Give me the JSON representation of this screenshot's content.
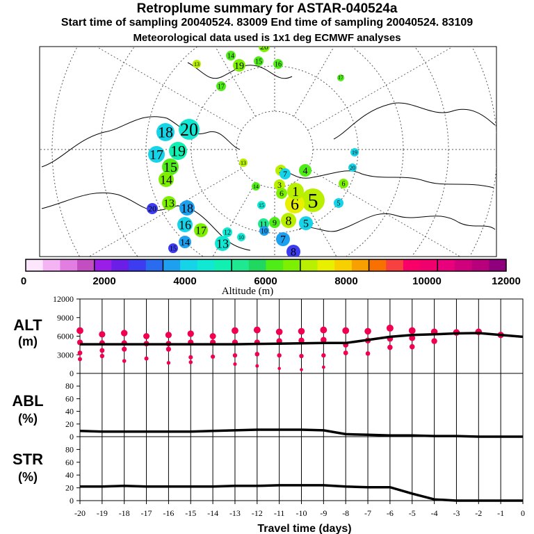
{
  "header": {
    "title": "Retroplume summary for ASTAR-040524a",
    "subtitle": "Start time of sampling 20040524. 83009     End time of sampling 20040524. 83109",
    "met": "Meteorological data used is 1x1 deg ECMWF analyses"
  },
  "colorbar": {
    "label": "Altitude  (m)",
    "ticks": [
      "0",
      "2000",
      "4000",
      "6000",
      "8000",
      "10000",
      "12000"
    ],
    "colors": [
      "#fce6fc",
      "#f4b4f4",
      "#e27ee2",
      "#c24ec2",
      "#9b1ee8",
      "#6a1ee8",
      "#3c3cf0",
      "#2a6cf0",
      "#1ea0f0",
      "#16d4e8",
      "#10e8d4",
      "#10f0b0",
      "#1ee890",
      "#20d860",
      "#50ec18",
      "#7cf000",
      "#b8f000",
      "#e8f000",
      "#f8d000",
      "#f8a000",
      "#f87000",
      "#f84040",
      "#f80068",
      "#f0006c",
      "#e8007c",
      "#d0007c",
      "#b8007c",
      "#90007c"
    ]
  },
  "map": {
    "labels": [
      {
        "t": "18",
        "c": "#16d4e8",
        "s": 22
      },
      {
        "t": "20",
        "c": "#10e8d4",
        "s": 26
      },
      {
        "t": "17",
        "c": "#16d4e8",
        "s": 20
      },
      {
        "t": "19",
        "c": "#10f0b0",
        "s": 22
      },
      {
        "t": "15",
        "c": "#50ec18",
        "s": 20
      },
      {
        "t": "14",
        "c": "#7cf000",
        "s": 18
      },
      {
        "t": "13",
        "c": "#7cf000",
        "s": 16
      },
      {
        "t": "18",
        "c": "#1ea0f0",
        "s": 18
      },
      {
        "t": "16",
        "c": "#16d4e8",
        "s": 18
      },
      {
        "t": "17",
        "c": "#7cf000",
        "s": 16
      },
      {
        "t": "14",
        "c": "#1ea0f0",
        "s": 14
      },
      {
        "t": "13",
        "c": "#10e8d4",
        "s": 18
      },
      {
        "t": "20",
        "c": "#3c3cf0",
        "s": 12
      },
      {
        "t": "15",
        "c": "#3c3cf0",
        "s": 10
      },
      {
        "t": "12",
        "c": "#10e8d4",
        "s": 10
      },
      {
        "t": "10",
        "c": "#10e8d4",
        "s": 8
      },
      {
        "t": "14",
        "c": "#50ec18",
        "s": 8
      },
      {
        "t": "13",
        "c": "#b8f000",
        "s": 8
      },
      {
        "t": "15",
        "c": "#10e8d4",
        "s": 8
      },
      {
        "t": "11",
        "c": "#1ee890",
        "s": 12
      },
      {
        "t": "9",
        "c": "#50ec18",
        "s": 12
      },
      {
        "t": "10",
        "c": "#1ea0f0",
        "s": 10
      },
      {
        "t": "8",
        "c": "#b8f000",
        "s": 18
      },
      {
        "t": "5",
        "c": "#16d4e8",
        "s": 16
      },
      {
        "t": "7",
        "c": "#1ea0f0",
        "s": 16
      },
      {
        "t": "8",
        "c": "#3c3cf0",
        "s": 16
      },
      {
        "t": "5",
        "c": "#b8f000",
        "s": 30
      },
      {
        "t": "6",
        "c": "#e8f000",
        "s": 24
      },
      {
        "t": "1",
        "c": "#b8f000",
        "s": 20
      },
      {
        "t": "4",
        "c": "#50ec18",
        "s": 14
      },
      {
        "t": "3",
        "c": "#b8f000",
        "s": 12
      },
      {
        "t": "2",
        "c": "#b8f000",
        "s": 12
      },
      {
        "t": "20",
        "c": "#16d4e8",
        "s": 8
      },
      {
        "t": "19",
        "c": "#16d4e8",
        "s": 8
      },
      {
        "t": "5",
        "c": "#16d4e8",
        "s": 10
      },
      {
        "t": "6",
        "c": "#7cf000",
        "s": 10
      },
      {
        "t": "20",
        "c": "#7cf000",
        "s": 12
      },
      {
        "t": "14",
        "c": "#50ec18",
        "s": 10
      },
      {
        "t": "19",
        "c": "#7cf000",
        "s": 14
      },
      {
        "t": "13",
        "c": "#b8f000",
        "s": 8
      },
      {
        "t": "15",
        "c": "#50ec18",
        "s": 10
      },
      {
        "t": "16",
        "c": "#50ec18",
        "s": 10
      },
      {
        "t": "17",
        "c": "#50ec18",
        "s": 10
      },
      {
        "t": "17",
        "c": "#50ec18",
        "s": 6
      },
      {
        "t": "7",
        "c": "#16d4e8",
        "s": 12
      },
      {
        "t": "6",
        "c": "#7cf000",
        "s": 12
      }
    ]
  },
  "chart_data": [
    {
      "type": "scatter",
      "name": "ALT",
      "ylabel": [
        "ALT",
        "(m)"
      ],
      "ylim": [
        0,
        12000
      ],
      "yticks": [
        "0",
        "3000",
        "6000",
        "9000",
        "12000"
      ],
      "xlim": [
        -20,
        0
      ],
      "line_x": [
        -20,
        -19,
        -18,
        -17,
        -16,
        -15,
        -14,
        -13,
        -12,
        -11,
        -10,
        -9,
        -8,
        -7,
        -6,
        -5,
        -4,
        -3,
        -2,
        -1,
        0
      ],
      "line_y": [
        4700,
        4700,
        4700,
        4700,
        4700,
        4700,
        4700,
        4700,
        4750,
        4800,
        4850,
        4900,
        4900,
        5400,
        5900,
        6200,
        6300,
        6450,
        6500,
        6200,
        5900
      ],
      "points": [
        {
          "x": -20,
          "y": 6900
        },
        {
          "x": -20,
          "y": 5000
        },
        {
          "x": -20,
          "y": 3300
        },
        {
          "x": -20,
          "y": 2300
        },
        {
          "x": -19,
          "y": 6300
        },
        {
          "x": -19,
          "y": 4900
        },
        {
          "x": -19,
          "y": 3700
        },
        {
          "x": -19,
          "y": 2800
        },
        {
          "x": -18,
          "y": 6500
        },
        {
          "x": -18,
          "y": 4900
        },
        {
          "x": -18,
          "y": 3900
        },
        {
          "x": -18,
          "y": 2000
        },
        {
          "x": -17,
          "y": 6000
        },
        {
          "x": -17,
          "y": 4800
        },
        {
          "x": -17,
          "y": 2400
        },
        {
          "x": -16,
          "y": 6200
        },
        {
          "x": -16,
          "y": 4800
        },
        {
          "x": -16,
          "y": 3900
        },
        {
          "x": -16,
          "y": 1700
        },
        {
          "x": -15,
          "y": 6400
        },
        {
          "x": -15,
          "y": 5000
        },
        {
          "x": -15,
          "y": 2600
        },
        {
          "x": -15,
          "y": 1800
        },
        {
          "x": -14,
          "y": 6000
        },
        {
          "x": -14,
          "y": 5000
        },
        {
          "x": -14,
          "y": 2700
        },
        {
          "x": -13,
          "y": 6900
        },
        {
          "x": -13,
          "y": 5000
        },
        {
          "x": -13,
          "y": 2900
        },
        {
          "x": -13,
          "y": 1500
        },
        {
          "x": -12,
          "y": 7000
        },
        {
          "x": -12,
          "y": 5000
        },
        {
          "x": -12,
          "y": 3100
        },
        {
          "x": -12,
          "y": 1200
        },
        {
          "x": -11,
          "y": 6700
        },
        {
          "x": -11,
          "y": 5200
        },
        {
          "x": -11,
          "y": 2900
        },
        {
          "x": -11,
          "y": 800
        },
        {
          "x": -10,
          "y": 6800
        },
        {
          "x": -10,
          "y": 5300
        },
        {
          "x": -10,
          "y": 2800
        },
        {
          "x": -10,
          "y": 600
        },
        {
          "x": -9,
          "y": 7000
        },
        {
          "x": -9,
          "y": 5400
        },
        {
          "x": -9,
          "y": 2900
        },
        {
          "x": -9,
          "y": 1000
        },
        {
          "x": -8,
          "y": 6900
        },
        {
          "x": -8,
          "y": 4600
        },
        {
          "x": -8,
          "y": 3300
        },
        {
          "x": -7,
          "y": 6800
        },
        {
          "x": -7,
          "y": 5300
        },
        {
          "x": -7,
          "y": 3200
        },
        {
          "x": -6,
          "y": 7300
        },
        {
          "x": -6,
          "y": 5600
        },
        {
          "x": -6,
          "y": 4200
        },
        {
          "x": -5,
          "y": 6900
        },
        {
          "x": -5,
          "y": 5700
        },
        {
          "x": -5,
          "y": 4300
        },
        {
          "x": -4,
          "y": 6700
        },
        {
          "x": -4,
          "y": 5200
        },
        {
          "x": -3,
          "y": 6600
        },
        {
          "x": -2,
          "y": 6700
        },
        {
          "x": -1,
          "y": 6200
        }
      ]
    },
    {
      "type": "line",
      "name": "ABL",
      "ylabel": [
        "ABL",
        "(%)"
      ],
      "ylim": [
        0,
        100
      ],
      "yticks": [
        "0",
        "20",
        "40",
        "60",
        "80"
      ],
      "x": [
        -20,
        -19,
        -18,
        -17,
        -16,
        -15,
        -14,
        -13,
        -12,
        -11,
        -10,
        -9,
        -8,
        -7,
        -6,
        -5,
        -4,
        -3,
        -2,
        -1,
        0
      ],
      "values": [
        9,
        8,
        8,
        8,
        8,
        8,
        9,
        10,
        11,
        11,
        11,
        10,
        4,
        3,
        2,
        2,
        1,
        1,
        0,
        0,
        0
      ]
    },
    {
      "type": "line",
      "name": "STR",
      "ylabel": [
        "STR",
        "(%)"
      ],
      "ylim": [
        0,
        100
      ],
      "yticks": [
        "0",
        "20",
        "40",
        "60",
        "80"
      ],
      "x": [
        -20,
        -19,
        -18,
        -17,
        -16,
        -15,
        -14,
        -13,
        -12,
        -11,
        -10,
        -9,
        -8,
        -7,
        -6,
        -5,
        -4,
        -3,
        -2,
        -1,
        0
      ],
      "values": [
        22,
        22,
        23,
        22,
        22,
        22,
        22,
        23,
        23,
        24,
        24,
        24,
        22,
        21,
        21,
        11,
        2,
        0,
        0,
        0,
        0
      ]
    }
  ],
  "xaxis": {
    "ticks": [
      "-20",
      "-19",
      "-18",
      "-17",
      "-16",
      "-15",
      "-14",
      "-13",
      "-12",
      "-11",
      "-10",
      "-9",
      "-8",
      "-7",
      "-6",
      "-5",
      "-4",
      "-3",
      "-2",
      "-1",
      "0"
    ],
    "label": "Travel time (days)"
  }
}
